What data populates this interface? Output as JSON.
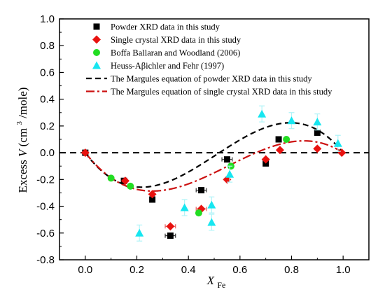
{
  "chart_data": {
    "type": "scatter",
    "xlabel": {
      "main": "X",
      "sub": "Fe"
    },
    "ylabel": {
      "main": "Excess ",
      "var": "V",
      "unit_open": " (cm",
      "sup": "3",
      "unit_close": "/mole)"
    },
    "xlim": [
      -0.1,
      1.1
    ],
    "ylim": [
      -0.8,
      1.0
    ],
    "x_ticks": [
      0.0,
      0.2,
      0.4,
      0.6,
      0.8,
      1.0
    ],
    "x_tick_labels": [
      "0.0",
      "0.2",
      "0.4",
      "0.6",
      "0.8",
      "1.0"
    ],
    "y_ticks": [
      -0.8,
      -0.6,
      -0.4,
      -0.2,
      0.0,
      0.2,
      0.4,
      0.6,
      0.8,
      1.0
    ],
    "y_tick_labels": [
      "-0.8",
      "-0.6",
      "-0.4",
      "-0.2",
      "0.0",
      "0.2",
      "0.4",
      "0.6",
      "0.8",
      "1.0"
    ],
    "reference_line": {
      "y": 0.0,
      "style": "dashed",
      "color": "#000000"
    },
    "legend_position": "top-left",
    "series": [
      {
        "name": "Powder XRD data in this study",
        "marker": "square",
        "color": "#000000",
        "points": [
          {
            "x": 0.0,
            "y": 0.0,
            "yerr": 0.01
          },
          {
            "x": 0.15,
            "y": -0.21,
            "yerr": 0.01
          },
          {
            "x": 0.26,
            "y": -0.35,
            "yerr": 0.01
          },
          {
            "x": 0.33,
            "y": -0.62,
            "xerr": 0.02,
            "yerr": 0.01
          },
          {
            "x": 0.45,
            "y": -0.28,
            "xerr": 0.02,
            "yerr": 0.01
          },
          {
            "x": 0.55,
            "y": -0.05,
            "xerr": 0.02,
            "yerr": 0.01
          },
          {
            "x": 0.7,
            "y": -0.08,
            "yerr": 0.01
          },
          {
            "x": 0.75,
            "y": 0.1,
            "yerr": 0.01
          },
          {
            "x": 0.9,
            "y": 0.15,
            "yerr": 0.02
          }
        ]
      },
      {
        "name": "Single crystal XRD data in this study",
        "marker": "diamond",
        "color": "#e8120f",
        "points": [
          {
            "x": 0.0,
            "y": 0.0
          },
          {
            "x": 0.155,
            "y": -0.21
          },
          {
            "x": 0.26,
            "y": -0.31
          },
          {
            "x": 0.33,
            "y": -0.55,
            "xerr": 0.02
          },
          {
            "x": 0.45,
            "y": -0.42,
            "xerr": 0.02
          },
          {
            "x": 0.55,
            "y": -0.2
          },
          {
            "x": 0.7,
            "y": -0.05
          },
          {
            "x": 0.755,
            "y": 0.02
          },
          {
            "x": 0.9,
            "y": 0.03
          },
          {
            "x": 0.995,
            "y": 0.0
          }
        ]
      },
      {
        "name": "Boffa Ballaran and Woodland (2006)",
        "marker": "circle",
        "color": "#22dd22",
        "points": [
          {
            "x": 0.1,
            "y": -0.19
          },
          {
            "x": 0.175,
            "y": -0.25
          },
          {
            "x": 0.44,
            "y": -0.45
          },
          {
            "x": 0.565,
            "y": -0.1
          },
          {
            "x": 0.78,
            "y": 0.1
          }
        ]
      },
      {
        "name": "Heuss-Aβichler and Fehr (1997)",
        "marker": "triangle",
        "color": "#17e6f0",
        "points": [
          {
            "x": 0.21,
            "y": -0.6,
            "yerr": 0.06
          },
          {
            "x": 0.385,
            "y": -0.41,
            "yerr": 0.06
          },
          {
            "x": 0.49,
            "y": -0.39,
            "yerr": 0.06
          },
          {
            "x": 0.49,
            "y": -0.52,
            "yerr": 0.06
          },
          {
            "x": 0.56,
            "y": -0.16,
            "yerr": 0.06
          },
          {
            "x": 0.685,
            "y": 0.29,
            "yerr": 0.06
          },
          {
            "x": 0.8,
            "y": 0.24,
            "yerr": 0.06
          },
          {
            "x": 0.9,
            "y": 0.23,
            "yerr": 0.06
          },
          {
            "x": 0.98,
            "y": 0.07,
            "yerr": 0.06
          }
        ]
      },
      {
        "name": "The Margules equation of powder XRD data in this study",
        "marker": "line",
        "line_style": "dashed",
        "color": "#000000",
        "model": {
          "form": "x(1-x)(a + b x)",
          "a": -2.6,
          "b": 5.0
        }
      },
      {
        "name": "The Margules equation of single crystal XRD data in this study",
        "marker": "line",
        "line_style": "dash-dot",
        "color": "#cc1111",
        "model": {
          "form": "x(1-x)(a + b x)",
          "a": -2.45,
          "b": 3.7
        }
      }
    ]
  }
}
